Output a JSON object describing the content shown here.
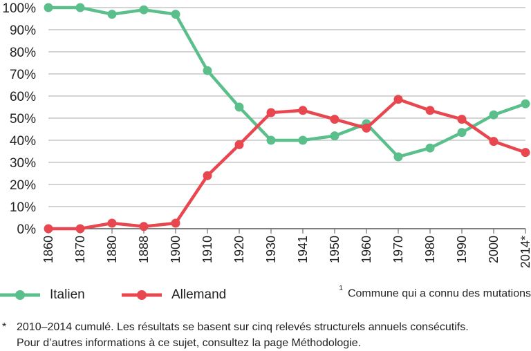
{
  "chart_data": {
    "type": "line",
    "title": "",
    "xlabel": "",
    "ylabel": "",
    "ylim": [
      0,
      100
    ],
    "y_ticks": [
      "0%",
      "10%",
      "20%",
      "30%",
      "40%",
      "50%",
      "60%",
      "70%",
      "80%",
      "90%",
      "100%"
    ],
    "categories": [
      "1860",
      "1870",
      "1880",
      "1888",
      "1900",
      "1910",
      "1920",
      "1930",
      "1941",
      "1950",
      "1960",
      "1970",
      "1980",
      "1990",
      "2000",
      "2014*"
    ],
    "grid": true,
    "legend_position": "bottom-left",
    "series": [
      {
        "name": "Italien",
        "color": "#5bbf8c",
        "values": [
          100,
          100,
          97,
          99,
          97,
          71.5,
          55,
          40,
          40,
          42,
          47.5,
          32.5,
          36.5,
          43.5,
          51.5,
          56.5
        ]
      },
      {
        "name": "Allemand",
        "color": "#e8474f",
        "values": [
          0,
          0,
          2.5,
          1,
          2.5,
          24,
          38,
          52.5,
          53.5,
          49.5,
          45.5,
          58.5,
          53.5,
          49.5,
          39.5,
          34.5
        ]
      }
    ]
  },
  "footnote_marker": "1",
  "footnote_text": "Commune qui a connu des mutations",
  "note_marker": "*",
  "note_lines": [
    "2010–2014 cumulé. Les résultats se basent sur cinq relevés structurels annuels consécutifs.",
    "Pour d’autres informations à ce sujet, consultez la page Méthodologie."
  ]
}
